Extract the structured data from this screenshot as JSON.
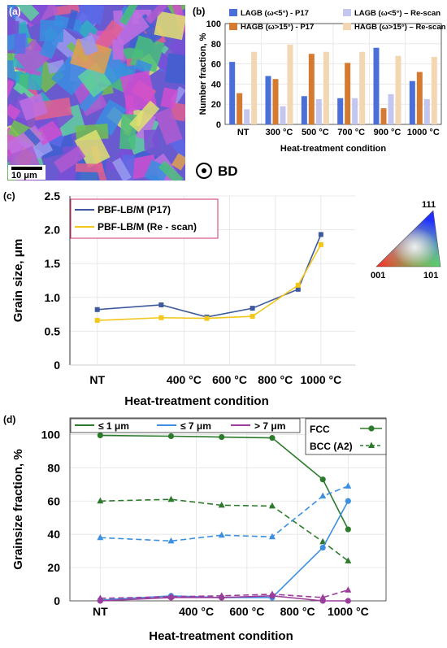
{
  "panels": {
    "a": "(a)",
    "b": "(b)",
    "c": "(c)",
    "d": "(d)"
  },
  "ebsd": {
    "scale_label": "10 μm",
    "bd_label": "BD"
  },
  "ipf": {
    "top": "111",
    "left": "001",
    "right": "101"
  },
  "colors": {
    "lagb_p17": "#4a6fd8",
    "lagb_rescan": "#c4c6f0",
    "hagb_p17": "#d57a31",
    "hagb_rescan": "#f3d6b2",
    "p17_line": "#3f5a9c",
    "rescan_line": "#f3c61a",
    "d1": "#2c7a2c",
    "d7": "#3d8fe0",
    "dbig": "#9b3d9b"
  },
  "chart_data": [
    {
      "type": "bar",
      "ylabel": "Number fraction, %",
      "xlabel": "Heat-treatment condition",
      "ylim": [
        0,
        100
      ],
      "yticks": [
        0,
        20,
        40,
        60,
        80,
        100
      ],
      "categories": [
        "NT",
        "300 °C",
        "500 °C",
        "700 °C",
        "900 °C",
        "1000 °C"
      ],
      "series": [
        {
          "name": "LAGB (ω<5°) - P17",
          "values": [
            62,
            48,
            28,
            26,
            76,
            43
          ]
        },
        {
          "name": "HAGB (ω>15°) - P17",
          "values": [
            31,
            45,
            70,
            61,
            16,
            52
          ]
        },
        {
          "name": "LAGB (ω<5°) – Re-scan",
          "values": [
            15,
            18,
            25,
            26,
            30,
            25
          ]
        },
        {
          "name": "HAGB (ω>15°) – Re-scan",
          "values": [
            72,
            79,
            72,
            72,
            68,
            67
          ]
        }
      ],
      "legend": "top"
    },
    {
      "type": "line",
      "ylabel": "Grain size, μm",
      "xlabel": "Heat-treatment condition",
      "ylim": [
        0,
        2.5
      ],
      "yticks": [
        0,
        0.5,
        1.0,
        1.5,
        2.0,
        2.5
      ],
      "ytick_labels": [
        "0",
        "0.5",
        "1.0",
        "1.5",
        "2.0",
        "2.5"
      ],
      "xticks": [
        "NT",
        "400 °C",
        "600 °C",
        "800 °C",
        "1000 °C"
      ],
      "xtick_pos": [
        20,
        400,
        600,
        800,
        1000
      ],
      "xlim": [
        -100,
        1150
      ],
      "series": [
        {
          "name": "PBF-LB/M (P17)",
          "x": [
            20,
            300,
            500,
            700,
            900,
            1000
          ],
          "values": [
            0.82,
            0.89,
            0.71,
            0.84,
            1.12,
            1.93
          ]
        },
        {
          "name": "PBF-LB/M (Re - scan)",
          "x": [
            20,
            300,
            500,
            700,
            900,
            1000
          ],
          "values": [
            0.66,
            0.7,
            0.69,
            0.72,
            1.18,
            1.78
          ]
        }
      ],
      "legend": "top-left"
    },
    {
      "type": "line",
      "ylabel": "Grainsize fraction, %",
      "xlabel": "Heat-treatment condition",
      "ylim": [
        0,
        110
      ],
      "yticks": [
        0,
        20,
        40,
        60,
        80,
        100
      ],
      "xticks": [
        "NT",
        "400 °C",
        "600 °C",
        "800 °C",
        "1000 °C"
      ],
      "xtick_pos": [
        20,
        400,
        600,
        800,
        1000
      ],
      "xlim": [
        -100,
        1150
      ],
      "size_legend": [
        "≤ 1 μm",
        "≤ 7 μm",
        "> 7 μm"
      ],
      "phase_legend": [
        "FCC",
        "BCC (A2)"
      ],
      "series": [
        {
          "size": "≤ 1 μm",
          "phase": "FCC",
          "x": [
            20,
            300,
            500,
            700,
            900,
            1000
          ],
          "values": [
            99.5,
            99,
            98.5,
            98,
            73,
            43
          ]
        },
        {
          "size": "≤ 1 μm",
          "phase": "BCC (A2)",
          "x": [
            20,
            300,
            500,
            700,
            900,
            1000
          ],
          "values": [
            60,
            61,
            57.5,
            57,
            35.5,
            24
          ]
        },
        {
          "size": "≤ 7 μm",
          "phase": "FCC",
          "x": [
            20,
            300,
            500,
            700,
            900,
            1000
          ],
          "values": [
            0.5,
            3,
            2,
            2,
            32,
            60
          ]
        },
        {
          "size": "≤ 7 μm",
          "phase": "BCC (A2)",
          "x": [
            20,
            300,
            500,
            700,
            900,
            1000
          ],
          "values": [
            38,
            36,
            39.5,
            38.5,
            63,
            69
          ]
        },
        {
          "size": "> 7 μm",
          "phase": "FCC",
          "x": [
            20,
            300,
            500,
            700,
            900,
            1000
          ],
          "values": [
            0,
            2,
            2,
            3,
            0,
            0
          ]
        },
        {
          "size": "> 7 μm",
          "phase": "BCC (A2)",
          "x": [
            20,
            300,
            500,
            700,
            900,
            1000
          ],
          "values": [
            1.5,
            2.5,
            3,
            4,
            2,
            6.5
          ]
        }
      ],
      "legend": "top"
    }
  ]
}
